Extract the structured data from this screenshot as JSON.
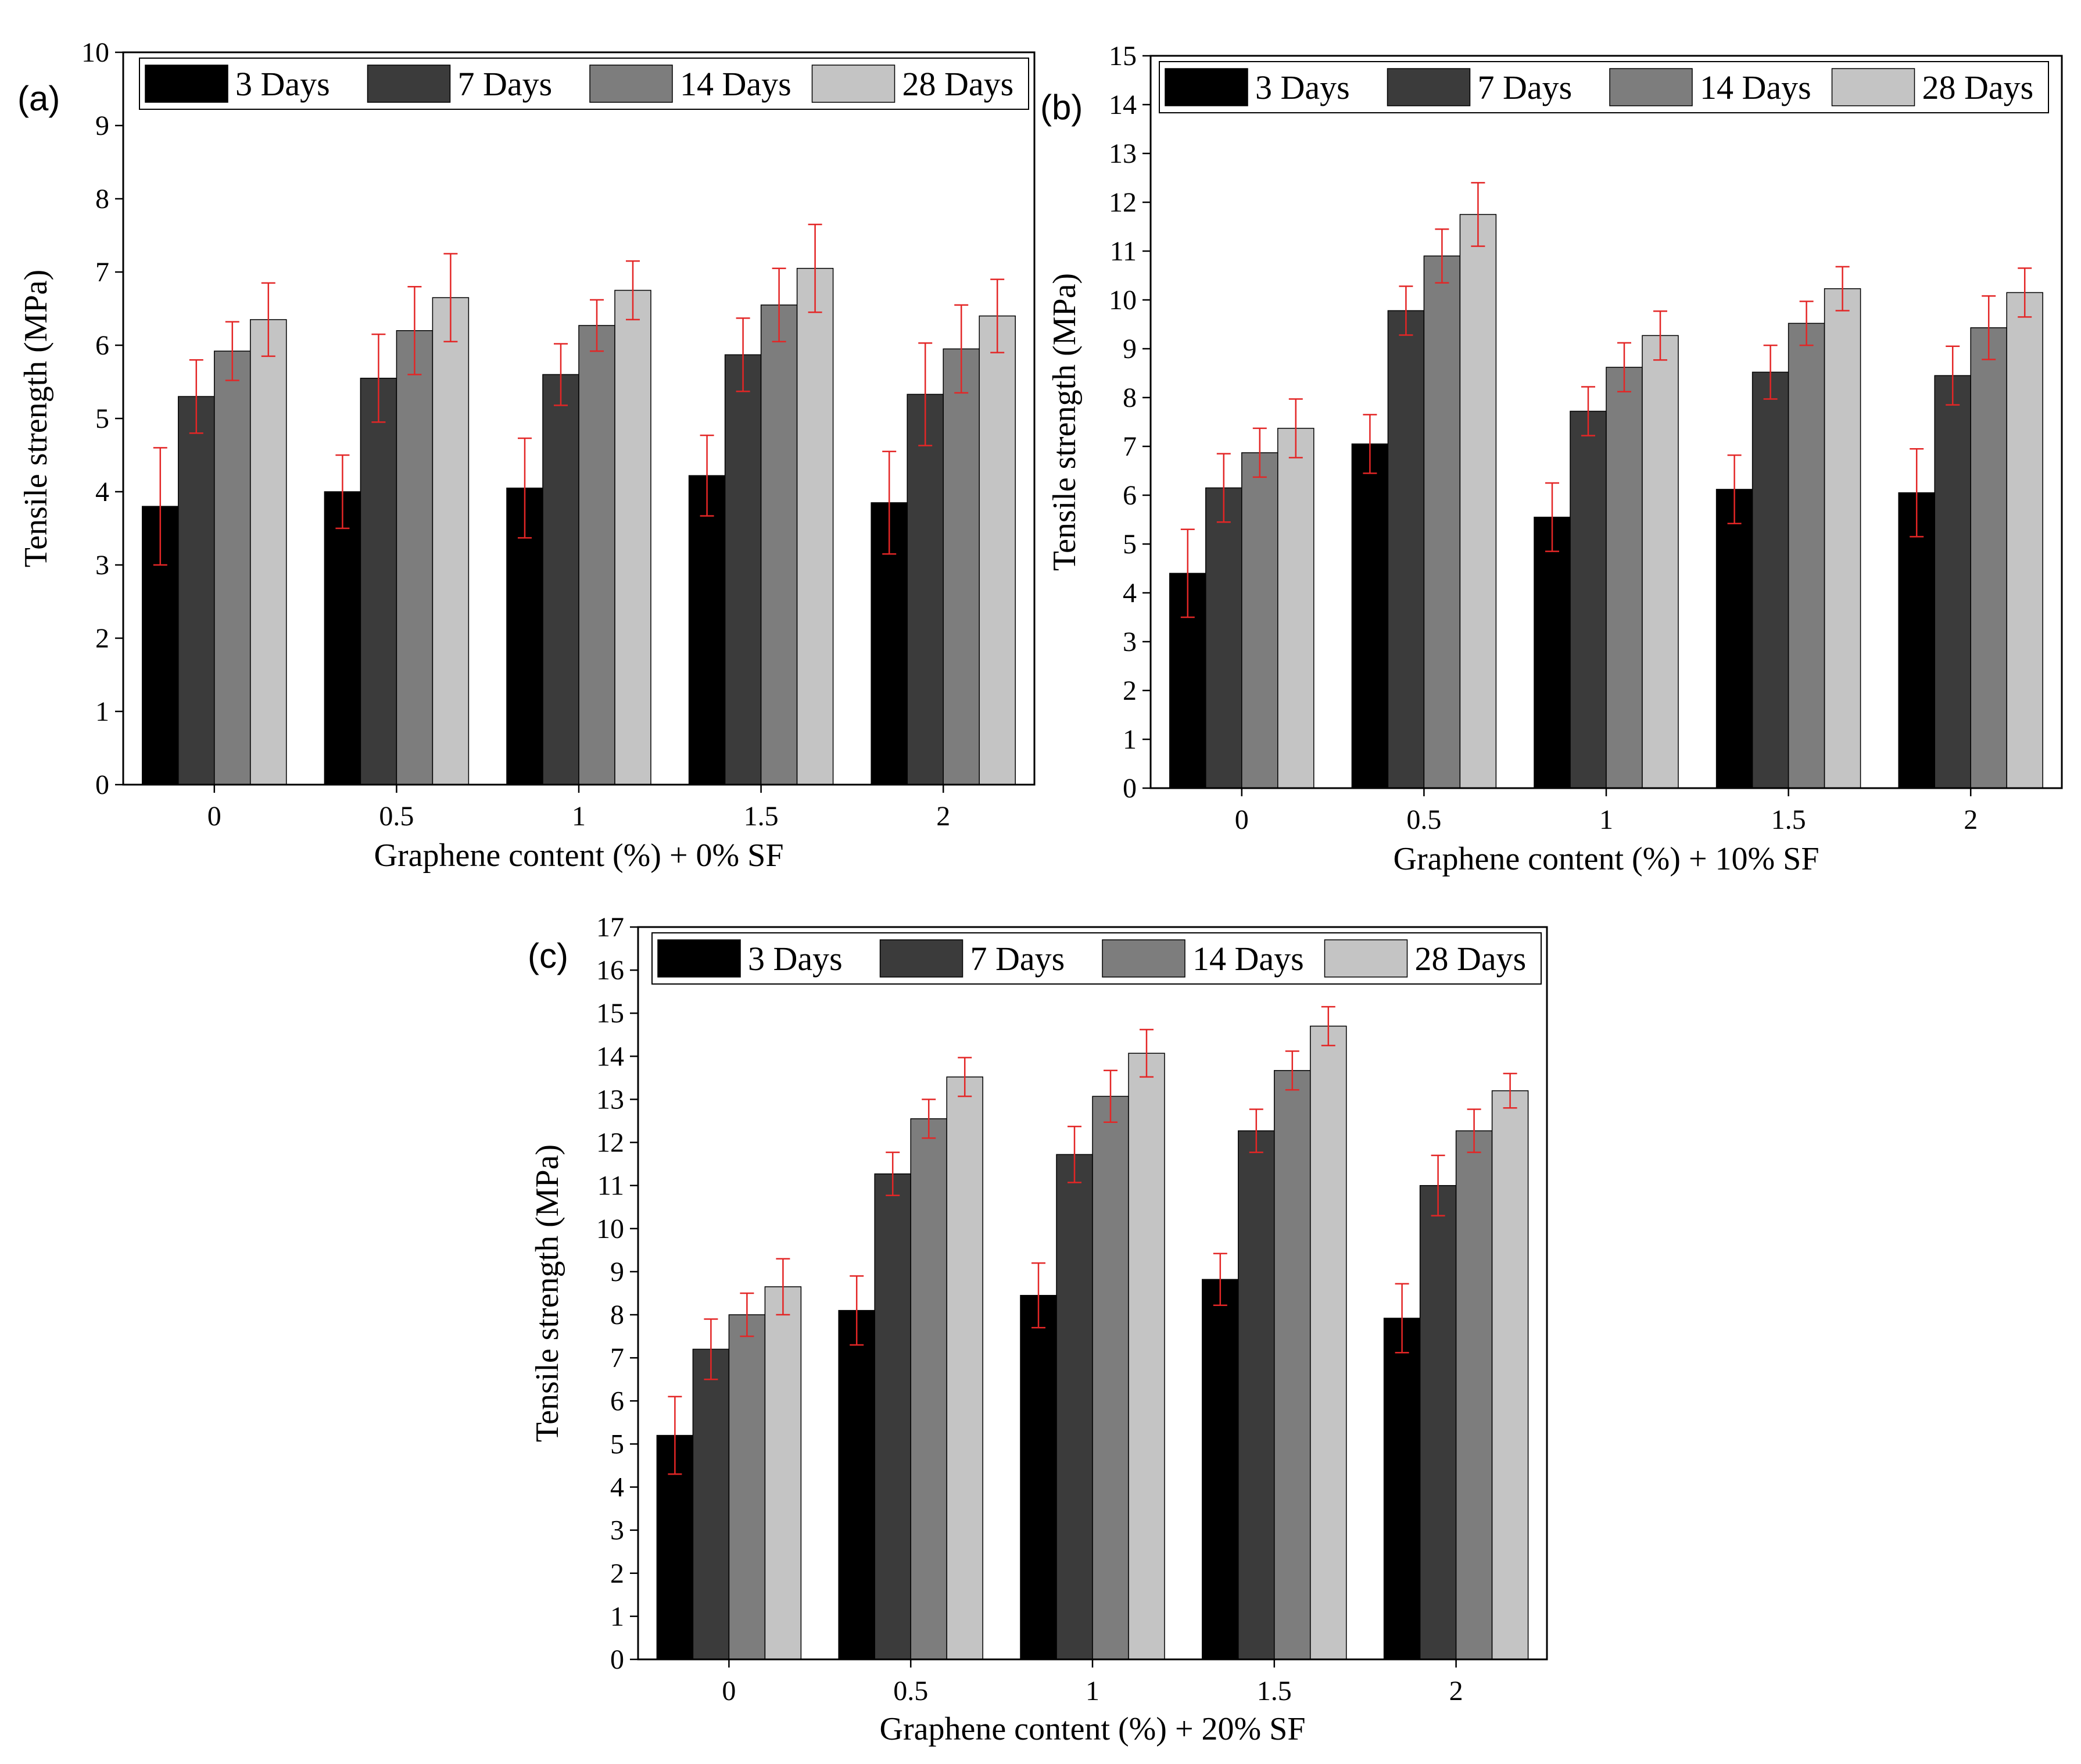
{
  "figure": {
    "panels": [
      {
        "letter": "(a)"
      },
      {
        "letter": "(b)"
      },
      {
        "letter": "(c)"
      }
    ]
  },
  "colors": {
    "series": [
      "#000000",
      "#3b3b3b",
      "#7d7d7d",
      "#c4c4c4"
    ],
    "error_bar": "#e32626",
    "axis": "#000000"
  },
  "chart_data": [
    {
      "type": "bar",
      "xlabel": "Graphene content (%) + 0% SF",
      "ylabel": "Tensile strength (MPa)",
      "categories": [
        "0",
        "0.5",
        "1",
        "1.5",
        "2"
      ],
      "ylim": [
        0,
        10
      ],
      "yticks": [
        0,
        1,
        2,
        3,
        4,
        5,
        6,
        7,
        8,
        9,
        10
      ],
      "legend": "top",
      "grid": false,
      "series": [
        {
          "name": "3 Days",
          "values": [
            3.8,
            4.0,
            4.05,
            4.22,
            3.85
          ],
          "errors": [
            0.8,
            0.5,
            0.68,
            0.55,
            0.7
          ]
        },
        {
          "name": "7 Days",
          "values": [
            5.3,
            5.55,
            5.6,
            5.87,
            5.33
          ],
          "errors": [
            0.5,
            0.6,
            0.42,
            0.5,
            0.7
          ]
        },
        {
          "name": "14 Days",
          "values": [
            5.92,
            6.2,
            6.27,
            6.55,
            5.95
          ],
          "errors": [
            0.4,
            0.6,
            0.35,
            0.5,
            0.6
          ]
        },
        {
          "name": "28 Days",
          "values": [
            6.35,
            6.65,
            6.75,
            7.05,
            6.4
          ],
          "errors": [
            0.5,
            0.6,
            0.4,
            0.6,
            0.5
          ]
        }
      ]
    },
    {
      "type": "bar",
      "xlabel": "Graphene content (%) + 10% SF",
      "ylabel": "Tensile strength (MPa)",
      "categories": [
        "0",
        "0.5",
        "1",
        "1.5",
        "2"
      ],
      "ylim": [
        0,
        15
      ],
      "yticks": [
        0,
        1,
        2,
        3,
        4,
        5,
        6,
        7,
        8,
        9,
        10,
        11,
        12,
        13,
        14,
        15
      ],
      "legend": "top",
      "grid": false,
      "series": [
        {
          "name": "3 Days",
          "values": [
            4.4,
            7.05,
            5.55,
            6.12,
            6.05
          ],
          "errors": [
            0.9,
            0.6,
            0.7,
            0.7,
            0.9
          ]
        },
        {
          "name": "7 Days",
          "values": [
            6.15,
            9.78,
            7.72,
            8.52,
            8.45
          ],
          "errors": [
            0.7,
            0.5,
            0.5,
            0.55,
            0.6
          ]
        },
        {
          "name": "14 Days",
          "values": [
            6.87,
            10.9,
            8.62,
            9.52,
            9.43
          ],
          "errors": [
            0.5,
            0.55,
            0.5,
            0.45,
            0.65
          ]
        },
        {
          "name": "28 Days",
          "values": [
            7.37,
            11.75,
            9.27,
            10.23,
            10.15
          ],
          "errors": [
            0.6,
            0.65,
            0.5,
            0.45,
            0.5
          ]
        }
      ]
    },
    {
      "type": "bar",
      "xlabel": "Graphene content (%) + 20% SF",
      "ylabel": "Tensile strength (MPa)",
      "categories": [
        "0",
        "0.5",
        "1",
        "1.5",
        "2"
      ],
      "ylim": [
        0,
        17
      ],
      "yticks": [
        0,
        1,
        2,
        3,
        4,
        5,
        6,
        7,
        8,
        9,
        10,
        11,
        12,
        13,
        14,
        15,
        16,
        17
      ],
      "legend": "top",
      "grid": false,
      "series": [
        {
          "name": "3 Days",
          "values": [
            5.2,
            8.1,
            8.45,
            8.82,
            7.92
          ],
          "errors": [
            0.9,
            0.8,
            0.75,
            0.6,
            0.8
          ]
        },
        {
          "name": "7 Days",
          "values": [
            7.2,
            11.27,
            11.72,
            12.27,
            11.0
          ],
          "errors": [
            0.7,
            0.5,
            0.65,
            0.5,
            0.7
          ]
        },
        {
          "name": "14 Days",
          "values": [
            8.0,
            12.55,
            13.07,
            13.67,
            12.27
          ],
          "errors": [
            0.5,
            0.45,
            0.6,
            0.45,
            0.5
          ]
        },
        {
          "name": "28 Days",
          "values": [
            8.65,
            13.52,
            14.07,
            14.7,
            13.2
          ],
          "errors": [
            0.65,
            0.45,
            0.55,
            0.45,
            0.4
          ]
        }
      ]
    }
  ]
}
